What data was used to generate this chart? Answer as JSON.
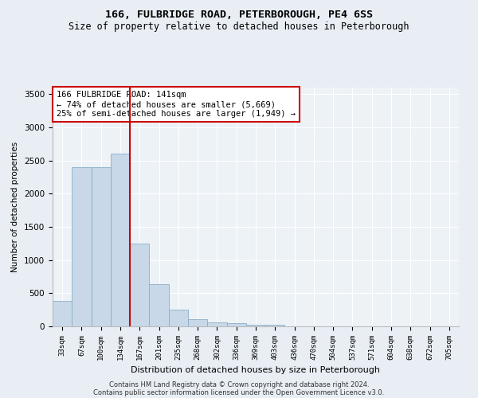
{
  "title": "166, FULBRIDGE ROAD, PETERBOROUGH, PE4 6SS",
  "subtitle": "Size of property relative to detached houses in Peterborough",
  "xlabel": "Distribution of detached houses by size in Peterborough",
  "ylabel": "Number of detached properties",
  "footnote1": "Contains HM Land Registry data © Crown copyright and database right 2024.",
  "footnote2": "Contains public sector information licensed under the Open Government Licence v3.0.",
  "bar_labels": [
    "33sqm",
    "67sqm",
    "100sqm",
    "134sqm",
    "167sqm",
    "201sqm",
    "235sqm",
    "268sqm",
    "302sqm",
    "336sqm",
    "369sqm",
    "403sqm",
    "436sqm",
    "470sqm",
    "504sqm",
    "537sqm",
    "571sqm",
    "604sqm",
    "638sqm",
    "672sqm",
    "705sqm"
  ],
  "bar_values": [
    390,
    2400,
    2400,
    2600,
    1250,
    640,
    250,
    105,
    60,
    45,
    30,
    30,
    0,
    0,
    0,
    0,
    0,
    0,
    0,
    0,
    0
  ],
  "bar_color": "#c8d8e8",
  "bar_edge_color": "#8aafc8",
  "vline_x": 3.5,
  "vline_color": "#cc0000",
  "annotation_text": "166 FULBRIDGE ROAD: 141sqm\n← 74% of detached houses are smaller (5,669)\n25% of semi-detached houses are larger (1,949) →",
  "annotation_box_color": "#ffffff",
  "annotation_box_edge_color": "#cc0000",
  "ylim": [
    0,
    3600
  ],
  "yticks": [
    0,
    500,
    1000,
    1500,
    2000,
    2500,
    3000,
    3500
  ],
  "bg_color": "#e8eef4",
  "plot_bg_color": "#edf2f7",
  "grid_color": "#ffffff",
  "title_fontsize": 9.5,
  "subtitle_fontsize": 8.5,
  "footnote_fontsize": 6.0
}
